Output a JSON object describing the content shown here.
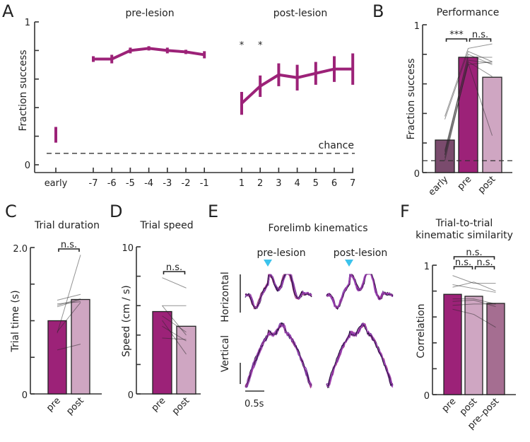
{
  "colors": {
    "purple": "#9c2278",
    "post": "#cfa6c2",
    "early": "#7a4b6d",
    "prepost": "#a56e91",
    "cue": "#3cc3ec",
    "trace_dark": "#1a1030",
    "trace_violet": "#6a2ca0",
    "trace_magenta": "#a040b0"
  },
  "chart_data": [
    {
      "panel": "A",
      "type": "line",
      "ylabel": "Fraction success",
      "ylim": [
        0,
        1
      ],
      "yticks": [
        0,
        0.2,
        0.4,
        0.6,
        0.8,
        1
      ],
      "ytick_labels": [
        "0",
        "",
        "",
        "",
        "",
        "1"
      ],
      "group_labels": [
        "pre-lesion",
        "post-lesion"
      ],
      "chance": 0.08,
      "chance_label": "chance",
      "early": {
        "label": "early",
        "mean": 0.21,
        "err": 0.055
      },
      "pre": {
        "x": [
          "-7",
          "-6",
          "-5",
          "-4",
          "-3",
          "-2",
          "-1"
        ],
        "mean": [
          0.74,
          0.74,
          0.8,
          0.815,
          0.8,
          0.79,
          0.77
        ],
        "err": [
          0.02,
          0.03,
          0.02,
          0.015,
          0.02,
          0.015,
          0.025
        ]
      },
      "post": {
        "x": [
          "1",
          "2",
          "3",
          "4",
          "5",
          "6",
          "7"
        ],
        "mean": [
          0.43,
          0.55,
          0.63,
          0.61,
          0.64,
          0.67,
          0.67
        ],
        "err": [
          0.08,
          0.075,
          0.08,
          0.09,
          0.08,
          0.09,
          0.11
        ]
      },
      "significance": [
        {
          "day": "1",
          "label": "*"
        },
        {
          "day": "2",
          "label": "*"
        }
      ]
    },
    {
      "panel": "B",
      "type": "bar",
      "title": "Performance",
      "ylabel": "Fraction success",
      "ylim": [
        0,
        1
      ],
      "ytick_labels": [
        "0",
        "1"
      ],
      "categories": [
        "early",
        "pre",
        "post"
      ],
      "values": [
        0.22,
        0.78,
        0.645
      ],
      "chance": 0.08,
      "subjects": [
        [
          0.38,
          0.84,
          0.87
        ],
        [
          0.36,
          0.82,
          0.75
        ],
        [
          0.12,
          0.8,
          0.73
        ],
        [
          0.08,
          0.75,
          0.65
        ],
        [
          0.1,
          0.74,
          0.25
        ],
        [
          0.14,
          0.76,
          0.74
        ],
        [
          0.12,
          0.73,
          0.75
        ],
        [
          0.15,
          0.78,
          0.78
        ]
      ],
      "brackets": [
        {
          "from": 0,
          "to": 1,
          "label": "***"
        },
        {
          "from": 1,
          "to": 2,
          "label": "n.s."
        }
      ]
    },
    {
      "panel": "C",
      "type": "bar",
      "title": "Trial duration",
      "ylabel": "Trial time (s)",
      "ylim": [
        0,
        2.0
      ],
      "ytick_labels": [
        "0",
        "2.0"
      ],
      "categories": [
        "pre",
        "post"
      ],
      "values": [
        1.0,
        1.29
      ],
      "subjects": [
        [
          1.28,
          1.36
        ],
        [
          1.23,
          1.26
        ],
        [
          1.21,
          1.3
        ],
        [
          1.19,
          1.29
        ],
        [
          0.83,
          1.9
        ],
        [
          0.85,
          1.25
        ],
        [
          0.6,
          0.68
        ]
      ],
      "brackets": [
        {
          "from": 0,
          "to": 1,
          "label": "n.s."
        }
      ]
    },
    {
      "panel": "D",
      "type": "bar",
      "title": "Trial speed",
      "ylabel": "Speed (cm / s)",
      "ylim": [
        0,
        10
      ],
      "ytick_labels": [
        "0",
        "10"
      ],
      "categories": [
        "pre",
        "post"
      ],
      "values": [
        5.6,
        4.6
      ],
      "subjects": [
        [
          7.9,
          7.2
        ],
        [
          6.0,
          6.0
        ],
        [
          6.0,
          4.0
        ],
        [
          5.3,
          4.2
        ],
        [
          4.6,
          3.6
        ],
        [
          3.8,
          3.7
        ],
        [
          5.0,
          2.7
        ]
      ],
      "brackets": [
        {
          "from": 0,
          "to": 1,
          "label": "n.s."
        }
      ]
    },
    {
      "panel": "F",
      "type": "bar",
      "title": [
        "Trial-to-trial",
        "kinematic similarity"
      ],
      "ylabel": "Correlation",
      "ylim": [
        0,
        1
      ],
      "ytick_labels": [
        "0",
        "1"
      ],
      "categories": [
        "pre",
        "post",
        "pre–post"
      ],
      "values": [
        0.775,
        0.76,
        0.705
      ],
      "subjects": [
        [
          0.92,
          0.86,
          0.86
        ],
        [
          0.85,
          0.82,
          0.79
        ],
        [
          0.83,
          0.87,
          0.8
        ],
        [
          0.74,
          0.74,
          0.7
        ],
        [
          0.72,
          0.73,
          0.68
        ],
        [
          0.69,
          0.7,
          0.7
        ],
        [
          0.66,
          0.62,
          0.52
        ]
      ],
      "brackets": [
        {
          "from": 0,
          "to": 1,
          "label": "n.s."
        },
        {
          "from": 1,
          "to": 2,
          "label": "n.s."
        },
        {
          "from": 0,
          "to": 2,
          "label": "n.s.",
          "level": 2
        }
      ]
    }
  ],
  "panelE": {
    "title": "Forelimb kinematics",
    "columns": [
      "pre-lesion",
      "post-lesion"
    ],
    "rows": [
      "Horizontal",
      "Vertical"
    ],
    "scale_label": "0.5s",
    "cue_icon": "triangle-down-icon"
  },
  "letters": [
    "A",
    "B",
    "C",
    "D",
    "E",
    "F"
  ]
}
